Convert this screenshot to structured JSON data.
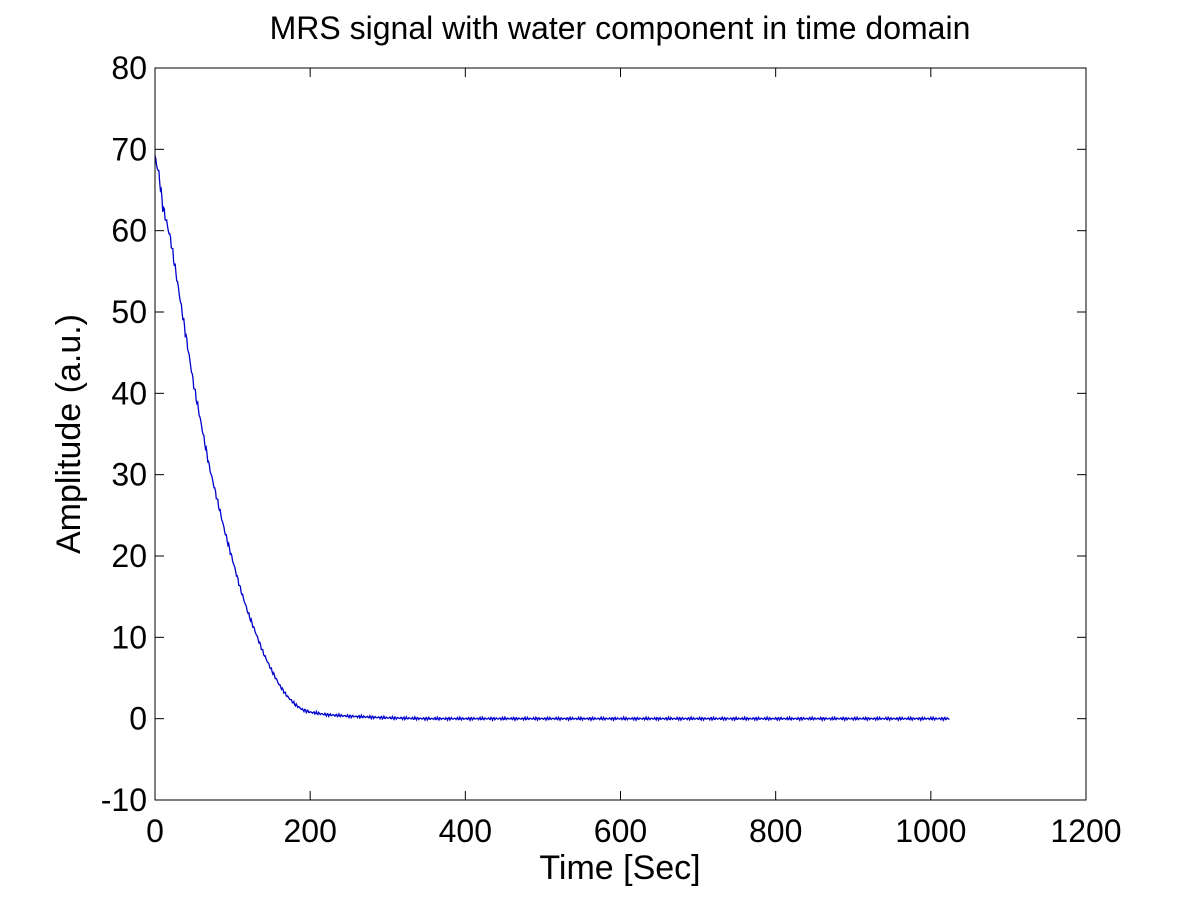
{
  "chart_data": {
    "type": "line",
    "title": "MRS signal with water component in time domain",
    "xlabel": "Time [Sec]",
    "ylabel": "Amplitude (a.u.)",
    "xlim": [
      0,
      1200
    ],
    "ylim": [
      -10,
      80
    ],
    "xticks": [
      0,
      200,
      400,
      600,
      800,
      1000,
      1200
    ],
    "yticks": [
      -10,
      0,
      10,
      20,
      30,
      40,
      50,
      60,
      70,
      80
    ],
    "grid": false,
    "legend": "none",
    "colors": {
      "line": "#0000cc",
      "axes": "#000000",
      "background": "#ffffff"
    },
    "series": [
      {
        "x": [
          0,
          5,
          10,
          20,
          30,
          40,
          50,
          60,
          70,
          80,
          90,
          100,
          110,
          120,
          130,
          140,
          150,
          160,
          170,
          180,
          190,
          200,
          220,
          250,
          300,
          350,
          400,
          500,
          600,
          700,
          800,
          900,
          1000,
          1024
        ],
        "y": [
          69,
          67,
          63,
          59,
          53,
          47,
          41,
          36,
          31,
          27,
          23,
          19.5,
          16,
          13,
          10.5,
          8,
          6,
          4.2,
          2.8,
          1.8,
          1.1,
          0.8,
          0.5,
          0.3,
          0.1,
          0.0,
          0.0,
          0.0,
          0.0,
          0.0,
          0.0,
          0.0,
          0.0,
          0.0
        ]
      }
    ]
  }
}
